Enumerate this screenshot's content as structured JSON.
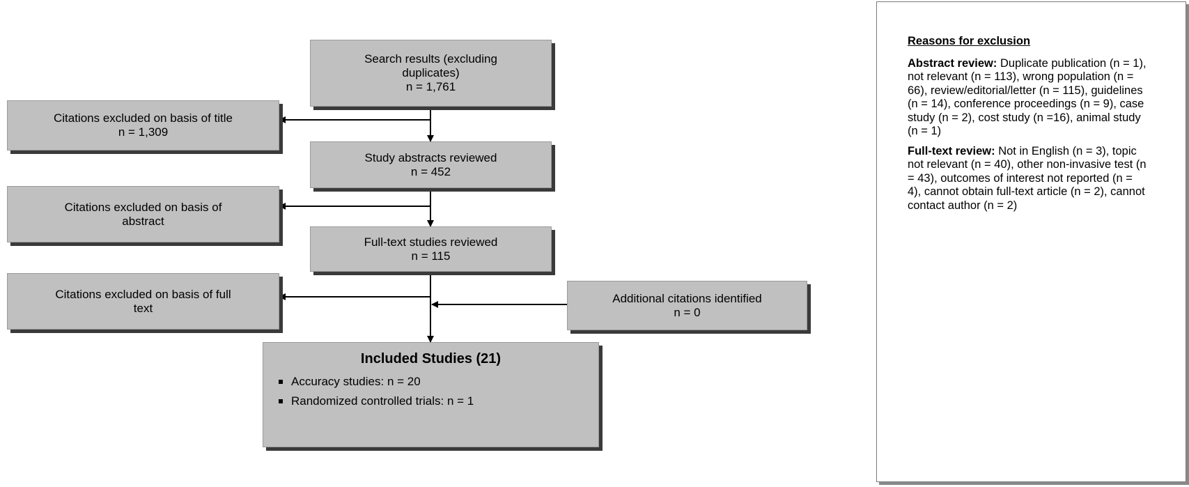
{
  "flow": {
    "search": {
      "line1": "Search results (excluding",
      "line2": "duplicates)",
      "line3": "n = 1,761"
    },
    "abstracts": {
      "line1": "Study abstracts reviewed",
      "line2": "n = 452"
    },
    "fulltext": {
      "line1": "Full-text studies reviewed",
      "line2": "n = 115"
    },
    "excl_title": {
      "line1": "Citations excluded on basis of title",
      "line2": "n = 1,309"
    },
    "excl_abstract": {
      "line1": "Citations excluded on basis of",
      "line2": "abstract"
    },
    "excl_fulltext": {
      "line1": "Citations excluded on basis of full",
      "line2": "text"
    },
    "additional": {
      "line1": "Additional citations identified",
      "line2": "n = 0"
    },
    "included": {
      "title": "Included Studies (21)",
      "items": [
        "Accuracy studies: n = 20",
        "Randomized controlled trials: n = 1"
      ]
    }
  },
  "reasons": {
    "title": "Reasons for exclusion",
    "abstract_label": "Abstract review:",
    "abstract_text": " Duplicate publication (n = 1), not relevant (n = 113), wrong population (n = 66), review/editorial/letter (n = 115), guidelines (n = 14), conference proceedings (n = 9), case study (n = 2), cost study (n =16), animal study (n = 1)",
    "fulltext_label": "Full-text review:",
    "fulltext_text": " Not in English (n = 3), topic not relevant (n = 40), other non-invasive test (n = 43), outcomes of interest not reported (n = 4), cannot obtain full-text article (n = 2), cannot contact author (n = 2)"
  },
  "colors": {
    "box_fill": "#c0c0c0",
    "box_shadow": "#3a3a3a",
    "line": "#000000",
    "panel_border": "#7a7a7a"
  }
}
